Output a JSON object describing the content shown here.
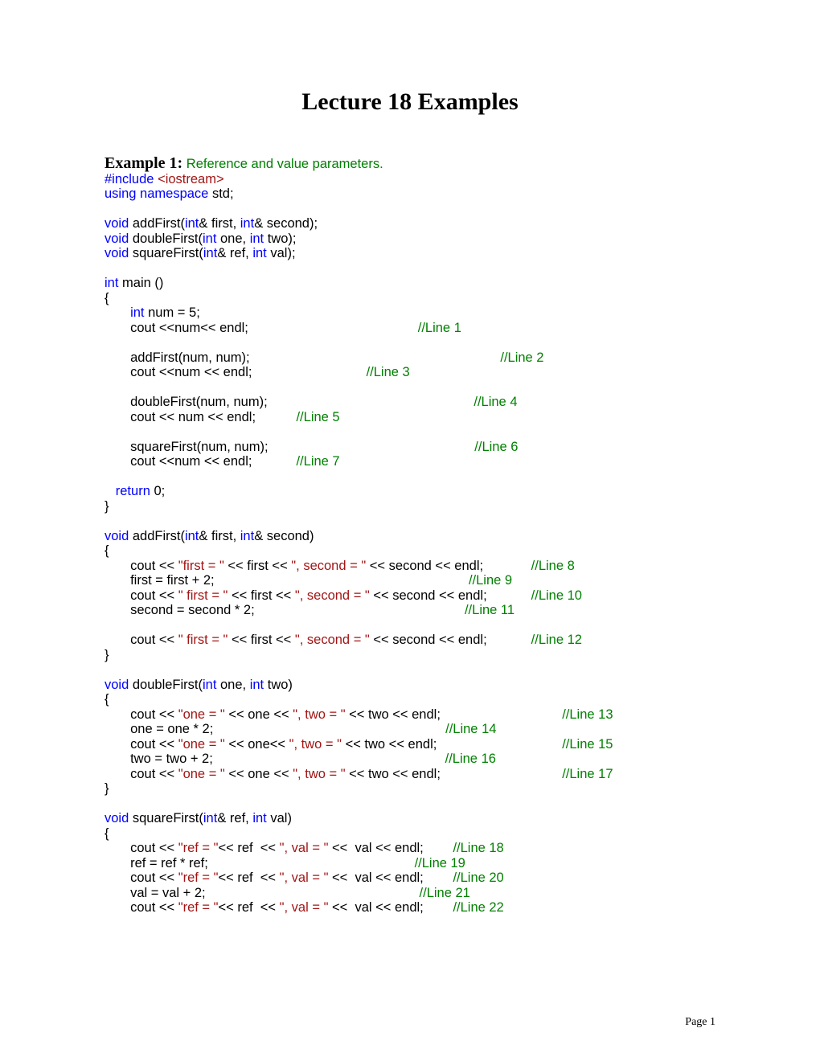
{
  "title": "Lecture 18 Examples",
  "page_number": "Page 1",
  "colors": {
    "black": "#000000",
    "blue": "#0000ff",
    "green": "#008000",
    "red": "#a31515"
  },
  "example_label": "Example 1:",
  "example_caption": " Reference and value parameters.",
  "code": {
    "l1": {
      "a": "#include ",
      "b": "<iostream>"
    },
    "l2": {
      "a": "using",
      "b": " ",
      "c": "namespace",
      "d": " std;"
    },
    "l3": {
      "a": "void",
      "b": " addFirst(",
      "c": "int",
      "d": "& first, ",
      "e": "int",
      "f": "& second);"
    },
    "l4": {
      "a": "void",
      "b": " doubleFirst(",
      "c": "int",
      "d": " one, ",
      "e": "int",
      "f": " two);"
    },
    "l5": {
      "a": "void",
      "b": " squareFirst(",
      "c": "int",
      "d": "& ref, ",
      "e": "int",
      "f": " val);"
    },
    "l6": {
      "a": "int",
      "b": " main ()"
    },
    "l7": "{",
    "l8": {
      "a": "       ",
      "b": "int",
      "c": " num = 5;"
    },
    "l9": {
      "a": "       cout <<num<< endl;                                              ",
      "b": "//Line 1"
    },
    "l10": {
      "a": "       addFirst(num, num);                                                                    ",
      "b": "//Line 2"
    },
    "l11": {
      "a": "       cout <<num << endl;                               ",
      "b": "//Line 3"
    },
    "l12": {
      "a": "       doubleFirst(num, num);                                                        ",
      "b": "//Line 4"
    },
    "l13": {
      "a": "       cout << num << endl;           ",
      "b": "//Line 5"
    },
    "l14": {
      "a": "       squareFirst(num, num);                                                        ",
      "b": "//Line 6"
    },
    "l15": {
      "a": "       cout <<num << endl;            ",
      "b": "//Line 7"
    },
    "l16": {
      "a": "   ",
      "b": "return",
      "c": " 0;"
    },
    "l17": "}",
    "l18": {
      "a": "void",
      "b": " addFirst(",
      "c": "int",
      "d": "& first, ",
      "e": "int",
      "f": "& second)"
    },
    "l19": "{",
    "l20": {
      "a": "       cout << ",
      "b": "\"first = \"",
      "c": " << first << ",
      "d": "\", second = \"",
      "e": " << second << endl;             ",
      "f": "//Line 8"
    },
    "l21": {
      "a": "       first = first + 2;                                                                     ",
      "b": "//Line 9"
    },
    "l22": {
      "a": "       cout << ",
      "b": "\" first = \"",
      "c": " << first << ",
      "d": "\", second = \"",
      "e": " << second << endl;            ",
      "f": "//Line 10"
    },
    "l23": {
      "a": "       second = second * 2;                                                         ",
      "b": "//Line 11"
    },
    "l24": {
      "a": "       cout << ",
      "b": "\" first = \"",
      "c": " << first << ",
      "d": "\", second = \"",
      "e": " << second << endl;            ",
      "f": "//Line 12"
    },
    "l25": "}",
    "l26": {
      "a": "void",
      "b": " doubleFirst(",
      "c": "int",
      "d": " one, ",
      "e": "int",
      "f": " two)"
    },
    "l27": "{",
    "l28": {
      "a": "       cout << ",
      "b": "\"one = \"",
      "c": " << one << ",
      "d": "\", two = \"",
      "e": " << two << endl;                                 ",
      "f": "//Line 13"
    },
    "l29": {
      "a": "       one = one * 2;                                                               ",
      "b": "//Line 14"
    },
    "l30": {
      "a": "       cout << ",
      "b": "\"one = \"",
      "c": " << one<< ",
      "d": "\", two = \"",
      "e": " << two << endl;                                  ",
      "f": "//Line 15"
    },
    "l31": {
      "a": "       two = two + 2;                                                               ",
      "b": "//Line 16"
    },
    "l32": {
      "a": "       cout << ",
      "b": "\"one = \"",
      "c": " << one << ",
      "d": "\", two = \"",
      "e": " << two << endl;                                 ",
      "f": "//Line 17"
    },
    "l33": "}",
    "l34": {
      "a": "void",
      "b": " squareFirst(",
      "c": "int",
      "d": "& ref, ",
      "e": "int",
      "f": " val)"
    },
    "l35": "{",
    "l36": {
      "a": "       cout << ",
      "b": "\"ref = \"",
      "c": "<< ref  << ",
      "d": "\", val = \"",
      "e": " <<  val << endl;        ",
      "f": "//Line 18"
    },
    "l37": {
      "a": "       ref = ref * ref;                                                        ",
      "b": "//Line 19"
    },
    "l38": {
      "a": "       cout << ",
      "b": "\"ref = \"",
      "c": "<< ref  << ",
      "d": "\", val = \"",
      "e": " <<  val << endl;        ",
      "f": "//Line 20"
    },
    "l39": {
      "a": "       val = val + 2;                                                          ",
      "b": "//Line 21"
    },
    "l40": {
      "a": "       cout << ",
      "b": "\"ref = \"",
      "c": "<< ref  << ",
      "d": "\", val = \"",
      "e": " <<  val << endl;        ",
      "f": "//Line 22"
    }
  }
}
